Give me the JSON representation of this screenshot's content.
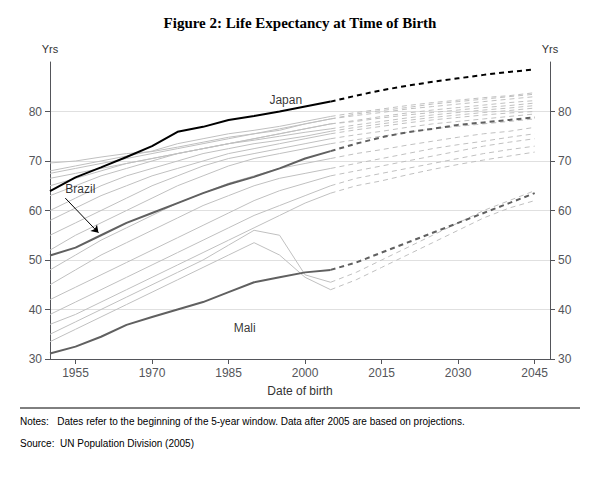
{
  "chart_data": {
    "type": "line",
    "title": "Figure 2: Life Expectancy at Time of Birth",
    "xlabel": "Date of birth",
    "ylabel": "Yrs",
    "y2label": "Yrs",
    "xlim": [
      1950,
      2048
    ],
    "ylim": [
      30,
      90
    ],
    "y2lim": [
      30,
      90
    ],
    "xticks": [
      1955,
      1970,
      1985,
      2000,
      2015,
      2030,
      2045
    ],
    "yticks": [
      30,
      40,
      50,
      60,
      70,
      80
    ],
    "y2ticks": [
      30,
      40,
      50,
      60,
      70,
      80
    ],
    "grid": true,
    "notes": [
      "Notes:   Dates refer to the beginning of the 5-year window. Data after 2005 are based on projections.",
      "Source:  UN Population Division (2005)"
    ],
    "annotations": [
      {
        "text": "Japan",
        "x": 1993,
        "y": 80.5
      },
      {
        "text": "Mali",
        "x": 1986,
        "y": 34.5
      },
      {
        "text": "Brazil",
        "x": 1953,
        "y": 62.5,
        "arrow_x": 1959.5,
        "arrow_y": 55.5
      }
    ],
    "series": [
      {
        "color": "#c0c0c0",
        "line_style": "solid",
        "x": [
          1950,
          1955,
          1960,
          1965,
          1970,
          1975,
          1980,
          1985,
          1990,
          1995,
          2000,
          2005
        ],
        "values": [
          69.6,
          70.0,
          70.8,
          71.5,
          71.9,
          72.8,
          73.8,
          74.8,
          75.5,
          76.2,
          77.5,
          78.5
        ]
      },
      {
        "color": "#c0c0c0",
        "line_style": "solid",
        "x": [
          1950,
          1955,
          1960,
          1965,
          1970,
          1975,
          1980,
          1985,
          1990,
          1995,
          2000,
          2005
        ],
        "values": [
          68.0,
          69.0,
          70.0,
          71.0,
          72.0,
          73.5,
          74.5,
          75.5,
          76.2,
          77.0,
          78.0,
          79.0
        ]
      },
      {
        "color": "#c0c0c0",
        "line_style": "solid",
        "x": [
          1950,
          1955,
          1960,
          1965,
          1970,
          1975,
          1980,
          1985,
          1990,
          1995,
          2000,
          2005
        ],
        "values": [
          67.5,
          68.5,
          69.5,
          70.5,
          71.5,
          72.5,
          73.5,
          74.5,
          75.5,
          76.5,
          77.5,
          78.5
        ]
      },
      {
        "color": "#c0c0c0",
        "line_style": "solid",
        "x": [
          1950,
          1955,
          1960,
          1965,
          1970,
          1975,
          1980,
          1985,
          1990,
          1995,
          2000,
          2005
        ],
        "values": [
          66.5,
          67.5,
          68.5,
          69.5,
          70.5,
          71.5,
          72.5,
          73.5,
          74.5,
          75.5,
          76.5,
          77.5
        ]
      },
      {
        "color": "#c0c0c0",
        "line_style": "solid",
        "x": [
          1950,
          1955,
          1960,
          1965,
          1970,
          1975,
          1980,
          1985,
          1990,
          1995,
          2000,
          2005
        ],
        "values": [
          65.0,
          66.5,
          68.0,
          69.5,
          70.5,
          71.5,
          72.5,
          73.5,
          74.5,
          75.5,
          76.5,
          77.5
        ]
      },
      {
        "color": "#c0c0c0",
        "line_style": "solid",
        "x": [
          1950,
          1955,
          1960,
          1965,
          1970,
          1975,
          1980,
          1985,
          1990,
          1995,
          2000,
          2005
        ],
        "values": [
          63.0,
          65.0,
          67.0,
          68.5,
          70.0,
          71.5,
          72.5,
          73.5,
          74.2,
          75.0,
          75.8,
          76.5
        ]
      },
      {
        "color": "#c0c0c0",
        "line_style": "solid",
        "x": [
          1950,
          1955,
          1960,
          1965,
          1970,
          1975,
          1980,
          1985,
          1990,
          1995,
          2000,
          2005
        ],
        "values": [
          60.0,
          62.5,
          65.0,
          67.0,
          68.5,
          70.0,
          71.5,
          72.5,
          73.5,
          74.2,
          75.0,
          76.0
        ]
      },
      {
        "color": "#c0c0c0",
        "line_style": "solid",
        "x": [
          1950,
          1955,
          1960,
          1965,
          1970,
          1975,
          1980,
          1985,
          1990,
          1995,
          2000,
          2005
        ],
        "values": [
          58.0,
          60.5,
          63.0,
          65.0,
          67.0,
          68.5,
          70.0,
          71.5,
          72.5,
          73.5,
          74.5,
          75.5
        ]
      },
      {
        "color": "#c0c0c0",
        "line_style": "solid",
        "x": [
          1950,
          1955,
          1960,
          1965,
          1970,
          1975,
          1980,
          1985,
          1990,
          1995,
          2000,
          2005
        ],
        "values": [
          55.0,
          57.5,
          60.0,
          62.5,
          65.0,
          67.0,
          69.0,
          70.5,
          71.5,
          72.5,
          73.5,
          74.5
        ]
      },
      {
        "color": "#c0c0c0",
        "line_style": "solid",
        "x": [
          1950,
          1955,
          1960,
          1965,
          1970,
          1975,
          1980,
          1985,
          1990,
          1995,
          2000,
          2005
        ],
        "values": [
          52.0,
          55.0,
          57.5,
          60.0,
          62.5,
          65.0,
          67.0,
          69.0,
          70.5,
          71.5,
          72.5,
          73.5
        ]
      },
      {
        "color": "#c0c0c0",
        "line_style": "solid",
        "x": [
          1950,
          1955,
          1960,
          1965,
          1970,
          1975,
          1980,
          1985,
          1990,
          1995,
          2000,
          2005
        ],
        "values": [
          48.0,
          51.0,
          54.0,
          56.5,
          59.0,
          61.5,
          63.5,
          65.5,
          67.0,
          68.5,
          69.5,
          70.5
        ]
      },
      {
        "color": "#c0c0c0",
        "line_style": "solid",
        "x": [
          1950,
          1955,
          1960,
          1965,
          1970,
          1975,
          1980,
          1985,
          1990,
          1995,
          2000,
          2005
        ],
        "values": [
          45.0,
          48.0,
          51.0,
          53.5,
          56.0,
          58.5,
          61.0,
          63.0,
          65.0,
          66.5,
          67.5,
          68.5
        ]
      },
      {
        "color": "#c0c0c0",
        "line_style": "solid",
        "x": [
          1950,
          1955,
          1960,
          1965,
          1970,
          1975,
          1980,
          1985,
          1990,
          1995,
          2000,
          2005
        ],
        "values": [
          42.0,
          44.5,
          47.0,
          49.5,
          52.0,
          54.5,
          57.0,
          59.5,
          62.0,
          64.0,
          65.5,
          67.0
        ]
      },
      {
        "color": "#c0c0c0",
        "line_style": "solid",
        "x": [
          1950,
          1955,
          1960,
          1965,
          1970,
          1975,
          1980,
          1985,
          1990,
          1995,
          2000,
          2005
        ],
        "values": [
          39.0,
          41.5,
          44.0,
          46.5,
          49.0,
          51.5,
          54.0,
          56.5,
          59.0,
          61.0,
          63.0,
          65.0
        ]
      },
      {
        "color": "#c0c0c0",
        "line_style": "solid",
        "x": [
          1950,
          1955,
          1960,
          1965,
          1970,
          1975,
          1980,
          1985,
          1990,
          1995,
          2000,
          2005
        ],
        "values": [
          37.0,
          39.0,
          41.5,
          44.0,
          46.5,
          49.0,
          51.5,
          54.0,
          56.5,
          59.0,
          61.5,
          63.5
        ]
      },
      {
        "color": "#c0c0c0",
        "line_style": "solid",
        "x": [
          1950,
          1955,
          1960,
          1965,
          1970,
          1975,
          1980,
          1985,
          1990,
          1995,
          2000,
          2005
        ],
        "values": [
          35.0,
          37.5,
          40.0,
          42.5,
          45.0,
          47.5,
          50.0,
          53.0,
          56.0,
          55.0,
          47.0,
          45.5
        ]
      },
      {
        "color": "#c0c0c0",
        "line_style": "solid",
        "x": [
          1950,
          1955,
          1960,
          1965,
          1970,
          1975,
          1980,
          1985,
          1990,
          1995,
          2000,
          2005
        ],
        "values": [
          33.5,
          36.0,
          38.5,
          41.0,
          43.5,
          46.0,
          48.5,
          51.0,
          53.5,
          51.0,
          46.5,
          44.0
        ]
      },
      {
        "color": "#c0c0c0",
        "line_style": "dashed",
        "x": [
          2005,
          2010,
          2015,
          2020,
          2025,
          2030,
          2035,
          2040,
          2045
        ],
        "values": [
          78.5,
          79.5,
          80.2,
          80.8,
          81.5,
          82.0,
          82.5,
          83.0,
          83.5
        ]
      },
      {
        "color": "#c0c0c0",
        "line_style": "dashed",
        "x": [
          2005,
          2010,
          2015,
          2020,
          2025,
          2030,
          2035,
          2040,
          2045
        ],
        "values": [
          79.0,
          79.8,
          80.5,
          81.2,
          81.8,
          82.3,
          82.8,
          83.2,
          83.8
        ]
      },
      {
        "color": "#c0c0c0",
        "line_style": "dashed",
        "x": [
          2005,
          2010,
          2015,
          2020,
          2025,
          2030,
          2035,
          2040,
          2045
        ],
        "values": [
          78.5,
          79.2,
          79.8,
          80.5,
          81.0,
          81.5,
          82.0,
          82.5,
          83.0
        ]
      },
      {
        "color": "#c0c0c0",
        "line_style": "dashed",
        "x": [
          2005,
          2010,
          2015,
          2020,
          2025,
          2030,
          2035,
          2040,
          2045
        ],
        "values": [
          77.5,
          78.2,
          79.0,
          79.7,
          80.3,
          80.8,
          81.3,
          81.8,
          82.2
        ]
      },
      {
        "color": "#c0c0c0",
        "line_style": "dashed",
        "x": [
          2005,
          2010,
          2015,
          2020,
          2025,
          2030,
          2035,
          2040,
          2045
        ],
        "values": [
          77.5,
          78.0,
          78.7,
          79.3,
          79.8,
          80.3,
          80.8,
          81.2,
          81.7
        ]
      },
      {
        "color": "#c0c0c0",
        "line_style": "dashed",
        "x": [
          2005,
          2010,
          2015,
          2020,
          2025,
          2030,
          2035,
          2040,
          2045
        ],
        "values": [
          76.5,
          77.3,
          78.0,
          78.7,
          79.3,
          79.8,
          80.3,
          80.7,
          81.2
        ]
      },
      {
        "color": "#c0c0c0",
        "line_style": "dashed",
        "x": [
          2005,
          2010,
          2015,
          2020,
          2025,
          2030,
          2035,
          2040,
          2045
        ],
        "values": [
          76.0,
          76.8,
          77.5,
          78.2,
          78.8,
          79.3,
          79.8,
          80.2,
          80.7
        ]
      },
      {
        "color": "#c0c0c0",
        "line_style": "dashed",
        "x": [
          2005,
          2010,
          2015,
          2020,
          2025,
          2030,
          2035,
          2040,
          2045
        ],
        "values": [
          75.5,
          76.3,
          77.0,
          77.7,
          78.3,
          78.8,
          79.3,
          79.7,
          80.0
        ]
      },
      {
        "color": "#c0c0c0",
        "line_style": "dashed",
        "x": [
          2005,
          2010,
          2015,
          2020,
          2025,
          2030,
          2035,
          2040,
          2045
        ],
        "values": [
          74.5,
          75.3,
          76.0,
          76.8,
          77.5,
          78.0,
          78.5,
          79.0,
          79.5
        ]
      },
      {
        "color": "#c0c0c0",
        "line_style": "dashed",
        "x": [
          2005,
          2010,
          2015,
          2020,
          2025,
          2030,
          2035,
          2040,
          2045
        ],
        "values": [
          73.5,
          74.3,
          75.0,
          75.8,
          76.5,
          77.0,
          77.5,
          78.0,
          78.5
        ]
      },
      {
        "color": "#c0c0c0",
        "line_style": "dashed",
        "x": [
          2005,
          2010,
          2015,
          2020,
          2025,
          2030,
          2035,
          2040,
          2045
        ],
        "values": [
          70.5,
          71.5,
          72.3,
          73.2,
          74.0,
          74.8,
          75.5,
          76.0,
          76.8
        ]
      },
      {
        "color": "#c0c0c0",
        "line_style": "dashed",
        "x": [
          2005,
          2010,
          2015,
          2020,
          2025,
          2030,
          2035,
          2040,
          2045
        ],
        "values": [
          68.5,
          69.5,
          70.5,
          71.5,
          72.5,
          73.3,
          74.0,
          74.8,
          75.5
        ]
      },
      {
        "color": "#c0c0c0",
        "line_style": "dashed",
        "x": [
          2005,
          2010,
          2015,
          2020,
          2025,
          2030,
          2035,
          2040,
          2045
        ],
        "values": [
          67.0,
          68.0,
          69.0,
          70.0,
          71.0,
          72.0,
          73.0,
          73.8,
          74.5
        ]
      },
      {
        "color": "#c0c0c0",
        "line_style": "dashed",
        "x": [
          2005,
          2010,
          2015,
          2020,
          2025,
          2030,
          2035,
          2040,
          2045
        ],
        "values": [
          65.0,
          66.5,
          67.5,
          68.5,
          69.5,
          70.5,
          71.5,
          72.3,
          73.0
        ]
      },
      {
        "color": "#c0c0c0",
        "line_style": "dashed",
        "x": [
          2005,
          2010,
          2015,
          2020,
          2025,
          2030,
          2035,
          2040,
          2045
        ],
        "values": [
          63.5,
          65.0,
          66.0,
          67.2,
          68.3,
          69.3,
          70.2,
          71.0,
          71.8
        ]
      },
      {
        "color": "#c0c0c0",
        "line_style": "dashed",
        "x": [
          2005,
          2010,
          2015,
          2020,
          2025,
          2030,
          2035,
          2040,
          2045
        ],
        "values": [
          45.5,
          47.5,
          50.0,
          52.5,
          55.0,
          57.5,
          60.0,
          62.0,
          64.0
        ]
      },
      {
        "color": "#c0c0c0",
        "line_style": "dashed",
        "x": [
          2005,
          2010,
          2015,
          2020,
          2025,
          2030,
          2035,
          2040,
          2045
        ],
        "values": [
          44.0,
          46.0,
          48.5,
          51.0,
          53.5,
          56.0,
          58.5,
          60.5,
          62.0
        ]
      },
      {
        "color": "#606060",
        "line_style": "solid",
        "x": [
          1950,
          1955,
          1960,
          1965,
          1970,
          1975,
          1980,
          1985,
          1990,
          1995,
          2000,
          2005
        ],
        "values": [
          50.9,
          52.5,
          55.0,
          57.5,
          59.5,
          61.5,
          63.5,
          65.3,
          66.8,
          68.5,
          70.5,
          72.0
        ]
      },
      {
        "color": "#606060",
        "line_style": "dashed",
        "x": [
          2005,
          2010,
          2015,
          2020,
          2025,
          2030,
          2035,
          2040,
          2045
        ],
        "values": [
          72.0,
          73.5,
          74.8,
          75.8,
          76.5,
          77.3,
          77.8,
          78.3,
          78.8
        ]
      },
      {
        "color": "#606060",
        "line_style": "solid",
        "x": [
          1950,
          1955,
          1960,
          1965,
          1970,
          1975,
          1980,
          1985,
          1990,
          1995,
          2000,
          2005
        ],
        "values": [
          31.1,
          32.5,
          34.5,
          36.9,
          38.5,
          40.0,
          41.5,
          43.5,
          45.5,
          46.5,
          47.5,
          48.0
        ]
      },
      {
        "color": "#606060",
        "line_style": "dashed",
        "x": [
          2005,
          2010,
          2015,
          2020,
          2025,
          2030,
          2035,
          2040,
          2045
        ],
        "values": [
          48.0,
          49.5,
          51.5,
          53.5,
          55.5,
          57.5,
          59.5,
          61.5,
          63.5
        ]
      },
      {
        "color": "#000000",
        "line_style": "solid",
        "x": [
          1950,
          1955,
          1960,
          1965,
          1970,
          1975,
          1980,
          1985,
          1990,
          1995,
          2000,
          2005
        ],
        "values": [
          63.9,
          66.7,
          68.7,
          70.8,
          73.0,
          75.9,
          76.9,
          78.3,
          79.1,
          80.0,
          81.0,
          82.0
        ]
      },
      {
        "color": "#000000",
        "line_style": "dashed",
        "x": [
          2005,
          2010,
          2015,
          2020,
          2025,
          2030,
          2035,
          2040,
          2045
        ],
        "values": [
          82.0,
          83.2,
          84.3,
          85.2,
          86.0,
          86.7,
          87.4,
          88.0,
          88.5
        ]
      }
    ]
  }
}
